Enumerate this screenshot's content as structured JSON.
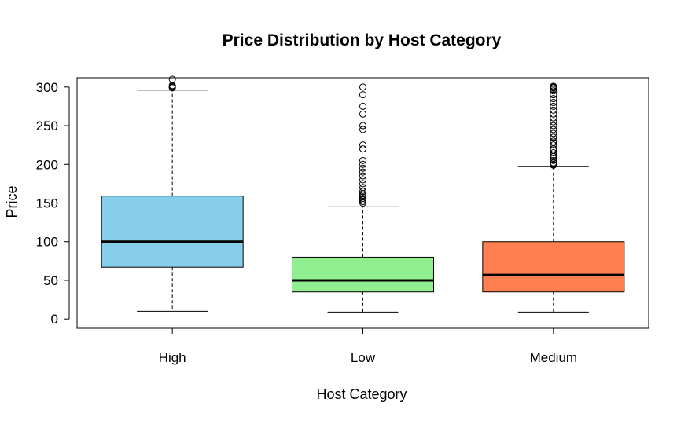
{
  "chart_data": {
    "type": "boxplot",
    "title": "Price Distribution by Host Category",
    "xlabel": "Host Category",
    "ylabel": "Price",
    "ylim": [
      -12,
      312
    ],
    "yticks": [
      0,
      50,
      100,
      150,
      200,
      250,
      300
    ],
    "categories": [
      "High",
      "Low",
      "Medium"
    ],
    "boxes": [
      {
        "category": "High",
        "color": "#87CEEB",
        "whisker_low": 10,
        "q1": 67,
        "median": 100,
        "q3": 159,
        "whisker_high": 296,
        "outliers": [
          299,
          300,
          301,
          302,
          310
        ]
      },
      {
        "category": "Low",
        "color": "#90EE90",
        "whisker_low": 9,
        "q1": 35,
        "median": 50,
        "q3": 80,
        "whisker_high": 145,
        "outliers": [
          150,
          152,
          154,
          156,
          158,
          160,
          162,
          165,
          170,
          175,
          180,
          185,
          190,
          195,
          200,
          205,
          220,
          225,
          245,
          250,
          265,
          275,
          290,
          300
        ]
      },
      {
        "category": "Medium",
        "color": "#FF7F50",
        "whisker_low": 9,
        "q1": 35,
        "median": 57,
        "q3": 100,
        "whisker_high": 197,
        "outliers": [
          199,
          200,
          202,
          205,
          208,
          210,
          212,
          215,
          218,
          220,
          225,
          228,
          230,
          235,
          240,
          245,
          250,
          255,
          260,
          265,
          270,
          275,
          280,
          285,
          290,
          295,
          297,
          299,
          300,
          301
        ]
      }
    ],
    "grid": false,
    "legend": "none"
  }
}
